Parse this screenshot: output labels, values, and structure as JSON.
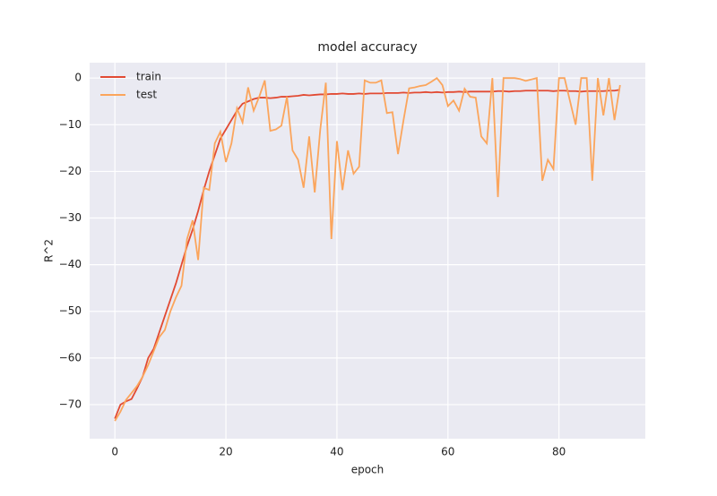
{
  "chart_data": {
    "type": "line",
    "title": "model accuracy",
    "x_label": "epoch",
    "y_label": "R^2",
    "x": [
      0,
      1,
      2,
      3,
      4,
      5,
      6,
      7,
      8,
      9,
      10,
      11,
      12,
      13,
      14,
      15,
      16,
      17,
      18,
      19,
      20,
      21,
      22,
      23,
      24,
      25,
      26,
      27,
      28,
      29,
      30,
      31,
      32,
      33,
      34,
      35,
      36,
      37,
      38,
      39,
      40,
      41,
      42,
      43,
      44,
      45,
      46,
      47,
      48,
      49,
      50,
      51,
      52,
      53,
      54,
      55,
      56,
      57,
      58,
      59,
      60,
      61,
      62,
      63,
      64,
      65,
      66,
      67,
      68,
      69,
      70,
      71,
      72,
      73,
      74,
      75,
      76,
      77,
      78,
      79,
      80,
      81,
      82,
      83,
      84,
      85,
      86,
      87,
      88,
      89,
      90,
      91
    ],
    "series": [
      {
        "name": "train",
        "color": "#e24a33",
        "values": [
          -73,
          -70,
          -69.3,
          -68.8,
          -66.5,
          -64,
          -60,
          -58,
          -54.5,
          -51,
          -47.5,
          -44,
          -40,
          -36,
          -32.5,
          -28.5,
          -24,
          -20,
          -16.5,
          -13,
          -11,
          -9,
          -7,
          -5.5,
          -5,
          -4.5,
          -4.2,
          -4.2,
          -4.3,
          -4.2,
          -4,
          -4,
          -3.9,
          -3.8,
          -3.6,
          -3.7,
          -3.6,
          -3.5,
          -3.5,
          -3.4,
          -3.4,
          -3.3,
          -3.4,
          -3.4,
          -3.3,
          -3.4,
          -3.3,
          -3.3,
          -3.3,
          -3.2,
          -3.2,
          -3.2,
          -3.1,
          -3.2,
          -3.1,
          -3.1,
          -3,
          -3.1,
          -3,
          -3.1,
          -3,
          -3,
          -2.9,
          -3,
          -2.9,
          -2.9,
          -2.9,
          -2.9,
          -2.9,
          -2.8,
          -2.8,
          -2.9,
          -2.8,
          -2.8,
          -2.7,
          -2.7,
          -2.7,
          -2.7,
          -2.7,
          -2.8,
          -2.7,
          -2.7,
          -2.8,
          -2.8,
          -2.9,
          -2.8,
          -2.8,
          -2.8,
          -2.8,
          -2.7,
          -2.7,
          -2.5
        ]
      },
      {
        "name": "test",
        "color": "#fba55c",
        "values": [
          -73.5,
          -71.5,
          -69,
          -67.5,
          -66,
          -64,
          -61.5,
          -58.5,
          -55.5,
          -54,
          -50,
          -47,
          -44.5,
          -34.5,
          -30.5,
          -39,
          -23.5,
          -24,
          -14,
          -11.5,
          -18,
          -14,
          -6.5,
          -9.5,
          -2,
          -7,
          -4,
          -0.5,
          -11.3,
          -11,
          -10.2,
          -4,
          -15.5,
          -17.5,
          -23.5,
          -12.5,
          -24.5,
          -11,
          -1,
          -34.5,
          -13.5,
          -24,
          -15.5,
          -20.5,
          -19,
          -0.5,
          -1,
          -1,
          -0.5,
          -7.5,
          -7.3,
          -16.3,
          -9,
          -2.2,
          -2,
          -1.7,
          -1.5,
          -0.8,
          0,
          -1.5,
          -6,
          -4.8,
          -7,
          -2.3,
          -4,
          -4.2,
          -12.5,
          -14,
          0,
          -25.5,
          0,
          0,
          0,
          -0.2,
          -0.6,
          -0.3,
          0,
          -22,
          -17.5,
          -19.5,
          0,
          0,
          -5,
          -10,
          0,
          0,
          -22,
          0,
          -8,
          0,
          -9,
          -1.5
        ]
      }
    ],
    "xlim": [
      -4.55,
      95.55
    ],
    "ylim": [
      -77.3,
      3.3
    ],
    "xticks": [
      0,
      20,
      40,
      60,
      80
    ],
    "yticks": [
      {
        "value": -70,
        "label": "−70"
      },
      {
        "value": -60,
        "label": "−60"
      },
      {
        "value": -50,
        "label": "−50"
      },
      {
        "value": -40,
        "label": "−40"
      },
      {
        "value": -30,
        "label": "−30"
      },
      {
        "value": -20,
        "label": "−20"
      },
      {
        "value": -10,
        "label": "−10"
      },
      0
    ],
    "grid": true,
    "legend": "upper-left"
  }
}
